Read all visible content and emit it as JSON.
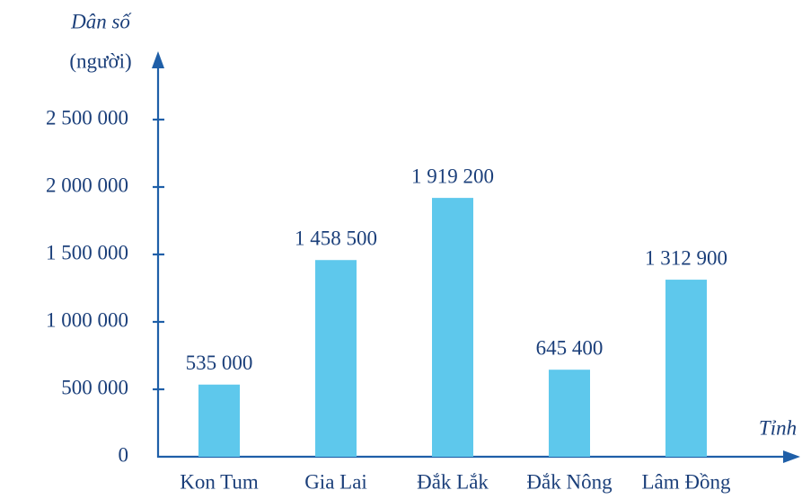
{
  "chart_data": {
    "type": "bar",
    "y_label_line1": "Dân số",
    "y_label_line2": "(người)",
    "x_label": "Tỉnh",
    "categories": [
      "Kon Tum",
      "Gia Lai",
      "Đắk Lắk",
      "Đắk Nông",
      "Lâm Đồng"
    ],
    "values": [
      535000,
      1458500,
      1919200,
      645400,
      1312900
    ],
    "value_labels": [
      "535 000",
      "1 458 500",
      "1 919 200",
      "645 400",
      "1 312 900"
    ],
    "color": "#5ec8ec",
    "ylim": [
      0,
      3000000
    ],
    "yticks": [
      0,
      {
        "value": 500000,
        "label": "500 000"
      },
      {
        "value": 1000000,
        "label": "1 000 000"
      },
      {
        "value": 1500000,
        "label": "1 500 000"
      },
      {
        "value": 2000000,
        "label": "2 000 000"
      },
      {
        "value": 2500000,
        "label": "2 500 000"
      }
    ]
  }
}
